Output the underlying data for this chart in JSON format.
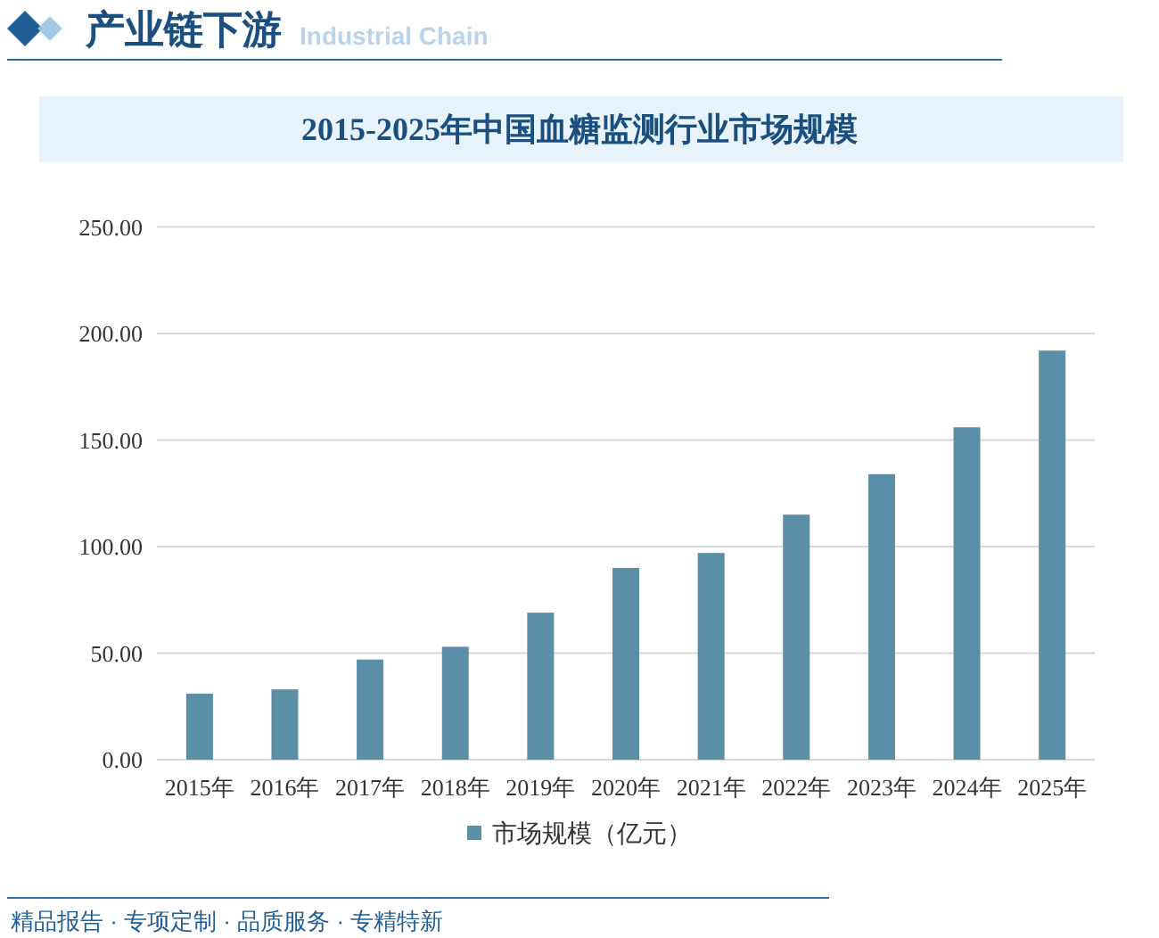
{
  "chart_data": {
    "type": "bar",
    "title": "2015-2025年中国血糖监测行业市场规模",
    "annotations": [
      "产业链下游",
      "Industrial Chain",
      "精品报告 · 专项定制 · 品质服务 · 专精特新"
    ],
    "categories": [
      "2015年",
      "2016年",
      "2017年",
      "2018年",
      "2019年",
      "2020年",
      "2021年",
      "2022年",
      "2023年",
      "2024年",
      "2025年"
    ],
    "series": [
      {
        "name": "市场规模（亿元）",
        "color": "#5b8fa8",
        "values": [
          31,
          33,
          47,
          53,
          69,
          90,
          97,
          115,
          134,
          156,
          192
        ]
      }
    ],
    "ylim": [
      0,
      250
    ],
    "yticks": [
      {
        "value": 0,
        "label": "0.00"
      },
      {
        "value": 50,
        "label": "50.00"
      },
      {
        "value": 100,
        "label": "100.00"
      },
      {
        "value": 150,
        "label": "150.00"
      },
      {
        "value": 200,
        "label": "200.00"
      },
      {
        "value": 250,
        "label": "250.00"
      }
    ],
    "grid": "y",
    "legend": "bottom"
  }
}
